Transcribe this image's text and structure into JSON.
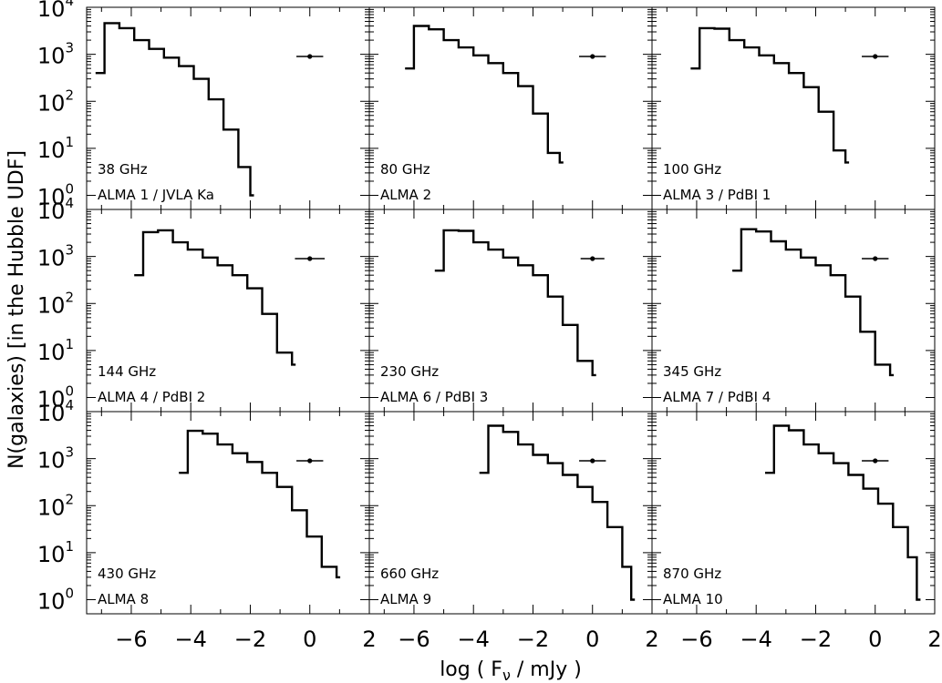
{
  "chart_data": {
    "type": "histogram-grid",
    "ylabel": "N(galaxies) [in the Hubble UDF]",
    "xlabel_parts": [
      "log ( F",
      "ν",
      " / mJy )"
    ],
    "xlim": [
      -7.5,
      2
    ],
    "ylim_log10": [
      -0.3,
      4
    ],
    "xticks": [
      -6,
      -4,
      -2,
      0,
      2
    ],
    "xtick_labels": [
      "−6",
      "−4",
      "−2",
      "0",
      "2"
    ],
    "yticks_exp": [
      "0",
      "1",
      "2",
      "3",
      "4"
    ],
    "ytick_base": "10",
    "panels": [
      {
        "freq": "38 GHz",
        "band": "ALMA 1 / JVLA Ka",
        "edges": [
          -7.2,
          -6.9,
          -6.4,
          -5.9,
          -5.4,
          -4.9,
          -4.4,
          -3.9,
          -3.4,
          -2.9,
          -2.4,
          -2.0
        ],
        "counts": [
          400,
          4600,
          3600,
          2000,
          1300,
          850,
          560,
          300,
          110,
          25,
          4,
          1
        ],
        "errbar": {
          "x": 0,
          "y": 900,
          "xerr": 0.45
        }
      },
      {
        "freq": "80 GHz",
        "band": "ALMA 2",
        "edges": [
          -6.3,
          -6.0,
          -5.5,
          -5.0,
          -4.5,
          -4.0,
          -3.5,
          -3.0,
          -2.5,
          -2.0,
          -1.5,
          -1.1
        ],
        "counts": [
          500,
          4000,
          3400,
          2000,
          1400,
          950,
          650,
          400,
          210,
          55,
          8,
          5
        ],
        "errbar": {
          "x": 0,
          "y": 900,
          "xerr": 0.45
        }
      },
      {
        "freq": "100 GHz",
        "band": "ALMA 3 / PdBI 1",
        "edges": [
          -6.2,
          -5.9,
          -5.4,
          -4.9,
          -4.4,
          -3.9,
          -3.4,
          -2.9,
          -2.4,
          -1.9,
          -1.4,
          -1.0
        ],
        "counts": [
          500,
          3600,
          3500,
          2000,
          1400,
          950,
          650,
          400,
          200,
          60,
          9,
          5
        ],
        "errbar": {
          "x": 0,
          "y": 900,
          "xerr": 0.45
        }
      },
      {
        "freq": "144 GHz",
        "band": "ALMA 4 / PdBI 2",
        "edges": [
          -5.9,
          -5.6,
          -5.1,
          -4.6,
          -4.1,
          -3.6,
          -3.1,
          -2.6,
          -2.1,
          -1.6,
          -1.1,
          -0.6
        ],
        "counts": [
          400,
          3300,
          3600,
          2000,
          1400,
          950,
          650,
          400,
          210,
          60,
          9,
          5
        ],
        "errbar": {
          "x": 0,
          "y": 900,
          "xerr": 0.5
        }
      },
      {
        "freq": "230 GHz",
        "band": "ALMA 6 / PdBI 3",
        "edges": [
          -5.3,
          -5.0,
          -4.5,
          -4.0,
          -3.5,
          -3.0,
          -2.5,
          -2.0,
          -1.5,
          -1.0,
          -0.5,
          0.0
        ],
        "counts": [
          500,
          3600,
          3500,
          2000,
          1400,
          950,
          650,
          400,
          140,
          35,
          6,
          3
        ],
        "errbar": {
          "x": 0,
          "y": 900,
          "xerr": 0.4
        }
      },
      {
        "freq": "345 GHz",
        "band": "ALMA 7 / PdBI 4",
        "edges": [
          -4.8,
          -4.5,
          -4.0,
          -3.5,
          -3.0,
          -2.5,
          -2.0,
          -1.5,
          -1.0,
          -0.5,
          0.0,
          0.5
        ],
        "counts": [
          500,
          3800,
          3400,
          2100,
          1400,
          950,
          650,
          400,
          140,
          25,
          5,
          3
        ],
        "errbar": {
          "x": 0,
          "y": 900,
          "xerr": 0.45
        }
      },
      {
        "freq": "430 GHz",
        "band": "ALMA 8",
        "edges": [
          -4.4,
          -4.1,
          -3.6,
          -3.1,
          -2.6,
          -2.1,
          -1.6,
          -1.1,
          -0.6,
          -0.1,
          0.4,
          0.9
        ],
        "counts": [
          500,
          3900,
          3400,
          2000,
          1300,
          850,
          500,
          250,
          80,
          22,
          5,
          3
        ],
        "errbar": {
          "x": 0,
          "y": 900,
          "xerr": 0.45
        }
      },
      {
        "freq": "660 GHz",
        "band": "ALMA 9",
        "edges": [
          -3.8,
          -3.5,
          -3.0,
          -2.5,
          -2.0,
          -1.5,
          -1.0,
          -0.5,
          0.0,
          0.5,
          1.0,
          1.3
        ],
        "counts": [
          500,
          5000,
          3700,
          2000,
          1200,
          800,
          450,
          250,
          120,
          35,
          5,
          1
        ],
        "errbar": {
          "x": 0,
          "y": 900,
          "xerr": 0.45
        }
      },
      {
        "freq": "870 GHz",
        "band": "ALMA 10",
        "edges": [
          -3.7,
          -3.4,
          -2.9,
          -2.4,
          -1.9,
          -1.4,
          -0.9,
          -0.4,
          0.1,
          0.6,
          1.1,
          1.4
        ],
        "counts": [
          500,
          5000,
          4000,
          2000,
          1300,
          800,
          450,
          230,
          110,
          35,
          8,
          1
        ],
        "errbar": {
          "x": 0,
          "y": 900,
          "xerr": 0.45
        }
      }
    ]
  }
}
